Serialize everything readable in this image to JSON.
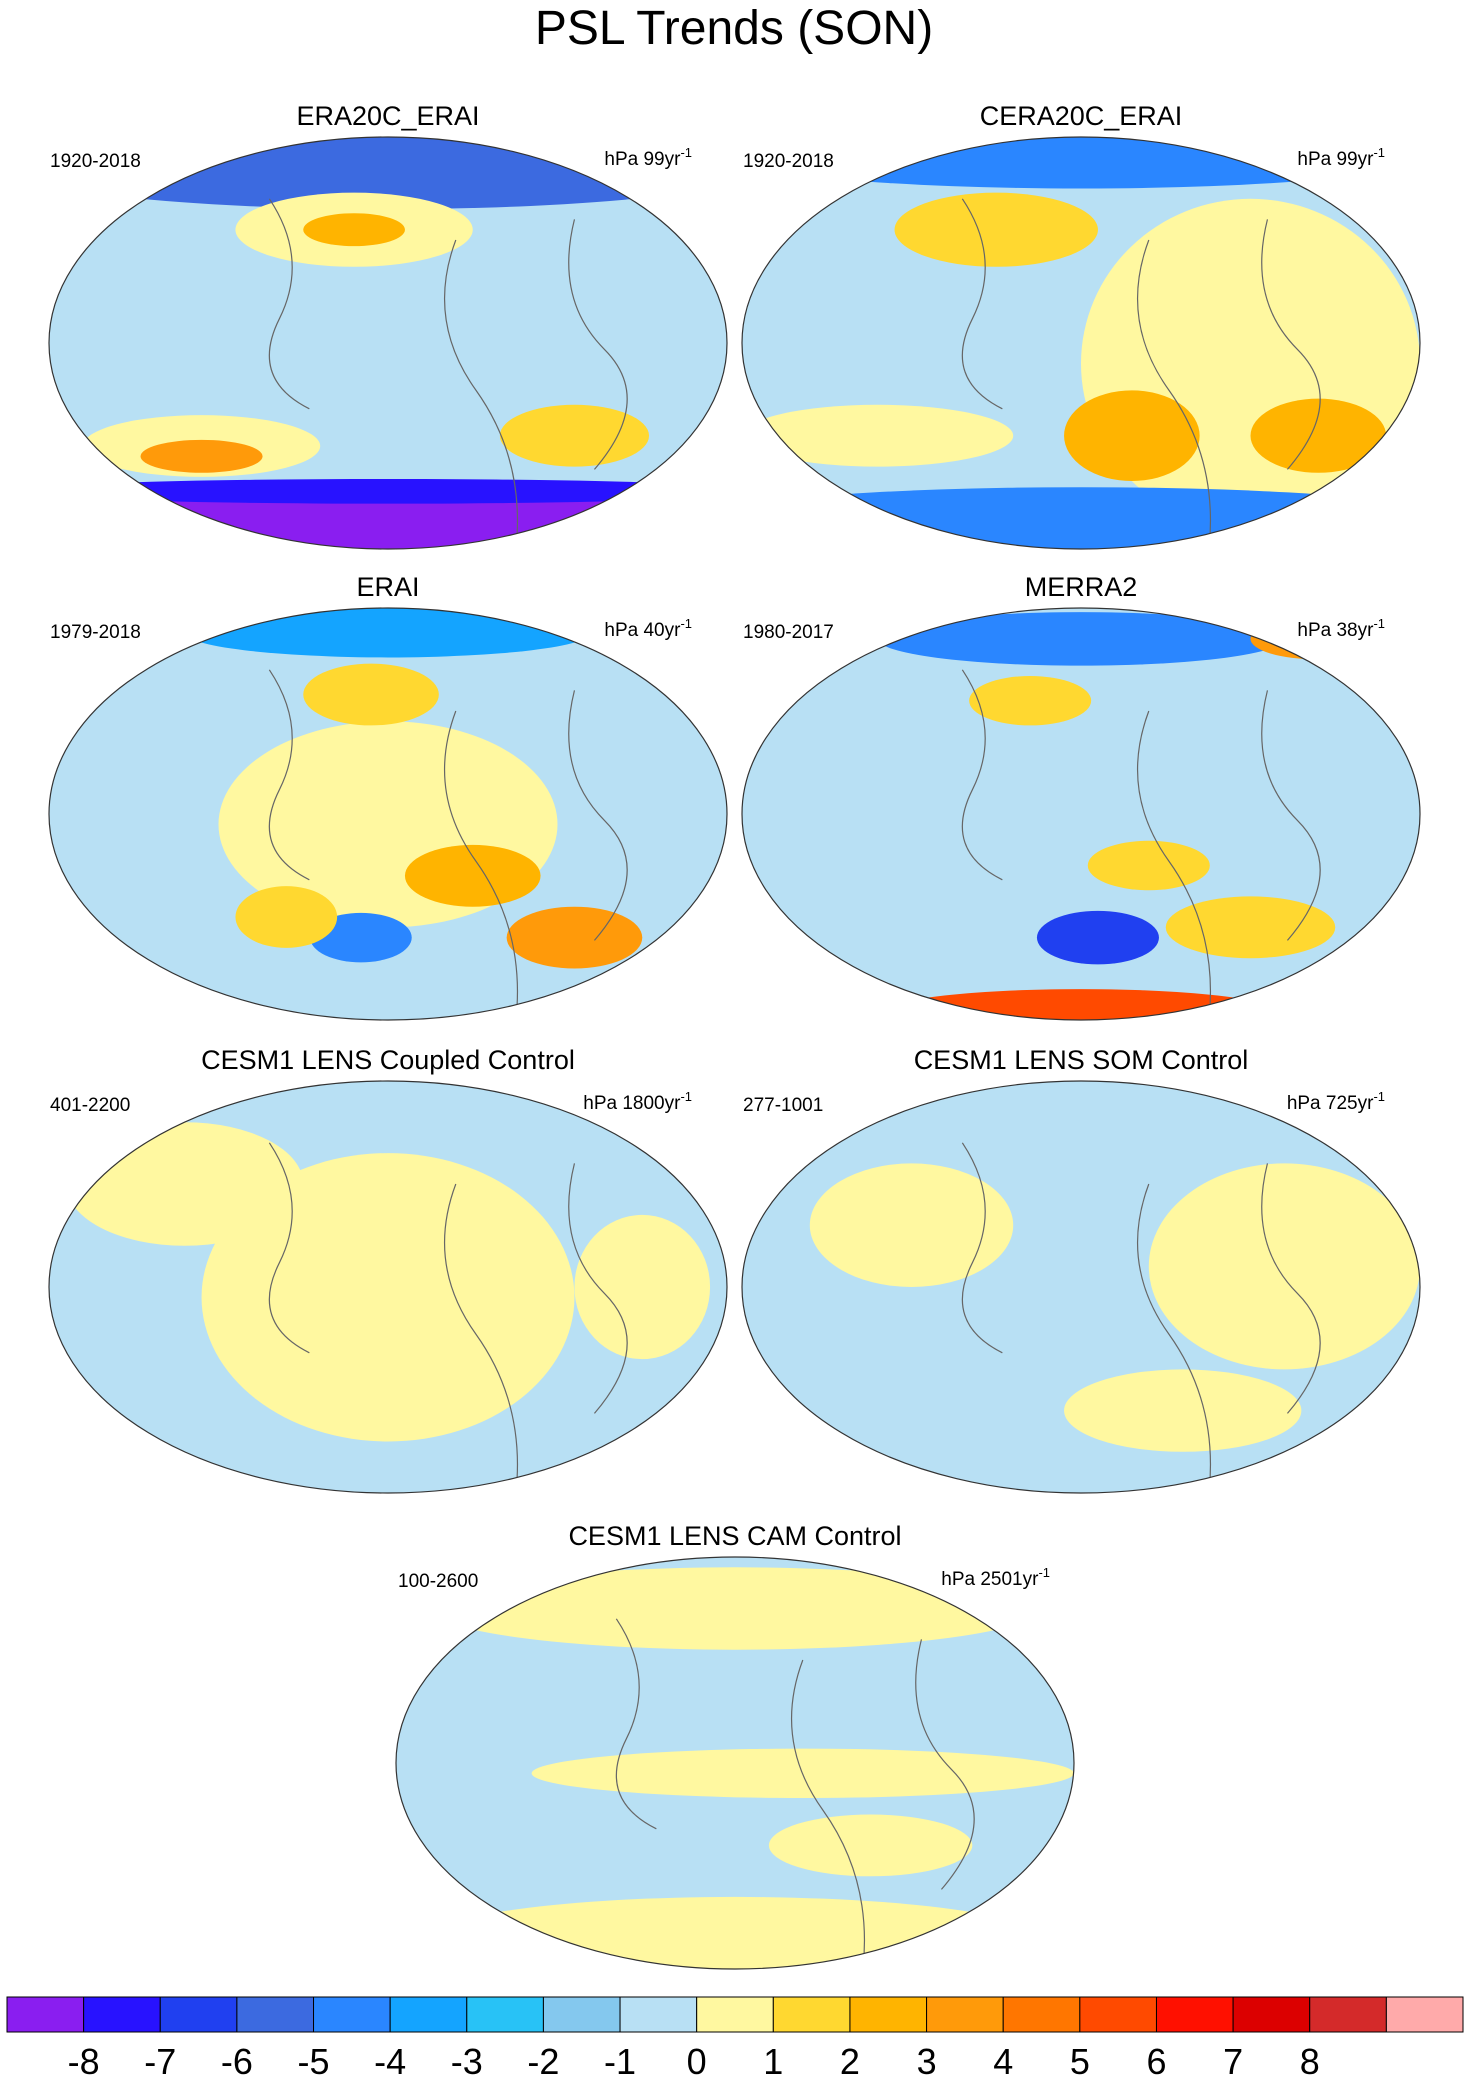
{
  "title": "PSL Trends (SON)",
  "panels": [
    {
      "title": "ERA20C_ERAI",
      "period": "1920-2018",
      "units": "hPa 99yr",
      "units_exponent": "-1"
    },
    {
      "title": "CERA20C_ERAI",
      "period": "1920-2018",
      "units": "hPa 99yr",
      "units_exponent": "-1"
    },
    {
      "title": "ERAI",
      "period": "1979-2018",
      "units": "hPa 40yr",
      "units_exponent": "-1"
    },
    {
      "title": "MERRA2",
      "period": "1980-2017",
      "units": "hPa 38yr",
      "units_exponent": "-1"
    },
    {
      "title": "CESM1 LENS Coupled Control",
      "period": "401-2200",
      "units": "hPa 1800yr",
      "units_exponent": "-1"
    },
    {
      "title": "CESM1 LENS SOM Control",
      "period": "277-1001",
      "units": "hPa 725yr",
      "units_exponent": "-1"
    },
    {
      "title": "CESM1 LENS CAM Control",
      "period": "100-2600",
      "units": "hPa 2501yr",
      "units_exponent": "-1"
    }
  ],
  "colorbar": {
    "ticks": [
      -8,
      -7,
      -6,
      -5,
      -4,
      -3,
      -2,
      -1,
      0,
      1,
      2,
      3,
      4,
      5,
      6,
      7,
      8
    ],
    "colors": [
      "#8a1ef0",
      "#2812ff",
      "#2040f0",
      "#3c6ae0",
      "#2a86ff",
      "#14a4ff",
      "#28c2f6",
      "#84c8ee",
      "#b8e0f4",
      "#fff8a0",
      "#ffd830",
      "#ffb400",
      "#ff9a0a",
      "#ff7600",
      "#ff4a00",
      "#ff1000",
      "#dc0000",
      "#d42a2a",
      "#ffaaaa"
    ]
  }
}
